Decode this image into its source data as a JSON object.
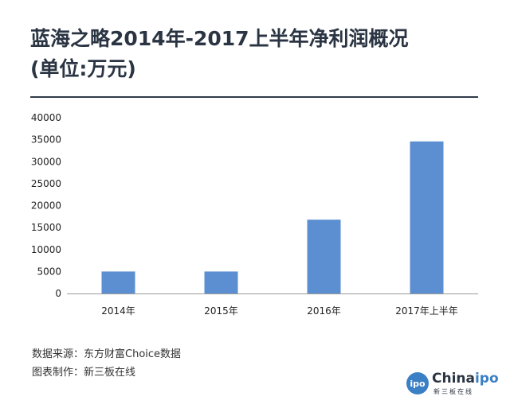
{
  "title_line1": "蓝海之略2014年-2017上半年净利润概况",
  "title_line2": "(单位:万元)",
  "source": {
    "line1": "数据来源：东方财富Choice数据",
    "line2": "图表制作：新三板在线"
  },
  "logo": {
    "circle_text": "ipo",
    "name_prefix": "China",
    "name_accent": "ipo",
    "subtitle": "新三板在线"
  },
  "colors": {
    "bar": "#5b8fd1",
    "title": "#2a3442",
    "brand": "#3b7fc4"
  },
  "chart_data": {
    "type": "bar",
    "categories": [
      "2014年",
      "2015年",
      "2016年",
      "2017年上半年"
    ],
    "values": [
      5000,
      5000,
      16800,
      34600
    ],
    "yticks": [
      0,
      5000,
      10000,
      15000,
      20000,
      25000,
      30000,
      35000,
      40000
    ],
    "ylim": [
      0,
      40000
    ],
    "grid": false,
    "legend": "none",
    "title": "蓝海之略2014年-2017上半年净利润概况",
    "ylabel": "",
    "xlabel": ""
  }
}
